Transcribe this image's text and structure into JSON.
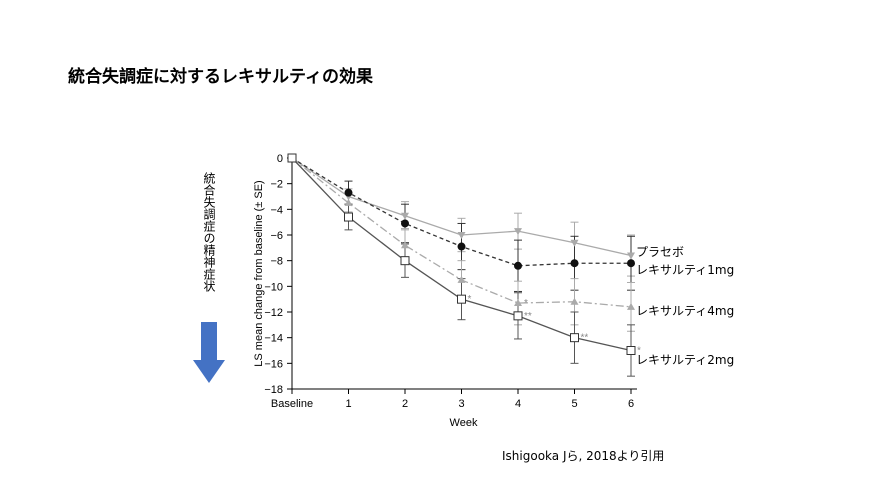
{
  "title": "統合失調症に対するレキサルティの効果",
  "side_label": "統合失調症の精神症状",
  "citation": "Ishigooka Jら, 2018より引用",
  "chart_data": {
    "type": "line",
    "xlabel": "Week",
    "ylabel": "LS mean change from baseline (± SE)",
    "categories": [
      "Baseline",
      "1",
      "2",
      "3",
      "4",
      "5",
      "6"
    ],
    "ylim": [
      -18,
      0
    ],
    "yticks": [
      0,
      -2,
      -4,
      -6,
      -8,
      -10,
      -12,
      -14,
      -16,
      -18
    ],
    "series": [
      {
        "name": "プラセボ",
        "marker": "triangle-down",
        "line": "solid-light",
        "color": "#aaaaaa",
        "values": [
          0,
          -3.0,
          -4.5,
          -6.0,
          -5.7,
          -6.6,
          -7.6
        ],
        "se": [
          0,
          0.6,
          1.1,
          1.3,
          1.4,
          1.6,
          1.6
        ],
        "sig": [
          "",
          "",
          "",
          "",
          "",
          "",
          ""
        ]
      },
      {
        "name": "レキサルティ1mg",
        "marker": "circle-filled",
        "line": "dashed",
        "color": "#333333",
        "values": [
          0,
          -2.7,
          -5.1,
          -6.9,
          -8.4,
          -8.2,
          -8.2
        ],
        "se": [
          0,
          0.9,
          1.5,
          1.8,
          2.0,
          2.1,
          2.1
        ],
        "sig": [
          "",
          "",
          "",
          "",
          "",
          "",
          ""
        ]
      },
      {
        "name": "レキサルティ4mg",
        "marker": "triangle-up",
        "line": "dash-dot-light",
        "color": "#aaaaaa",
        "values": [
          0,
          -3.5,
          -6.8,
          -9.5,
          -11.3,
          -11.2,
          -11.6
        ],
        "se": [
          0,
          0.7,
          1.3,
          1.5,
          1.7,
          1.8,
          1.9
        ],
        "sig": [
          "",
          "",
          "",
          "",
          "*",
          "",
          ""
        ]
      },
      {
        "name": "レキサルティ2mg",
        "marker": "square-open",
        "line": "solid",
        "color": "#555555",
        "values": [
          0,
          -4.6,
          -8.0,
          -11.0,
          -12.3,
          -14.0,
          -15.0
        ],
        "se": [
          0,
          1.0,
          1.3,
          1.6,
          1.8,
          2.0,
          2.0
        ],
        "sig": [
          "",
          "",
          "",
          "*",
          "**",
          "**",
          "*"
        ]
      }
    ],
    "legend_labels": [
      "プラセボ",
      "レキサルティ1mg",
      "レキサルティ4mg",
      "レキサルティ2mg"
    ],
    "grid": false,
    "legend_placement": "right, next to line ends"
  },
  "arrow_color": "#4472c4"
}
